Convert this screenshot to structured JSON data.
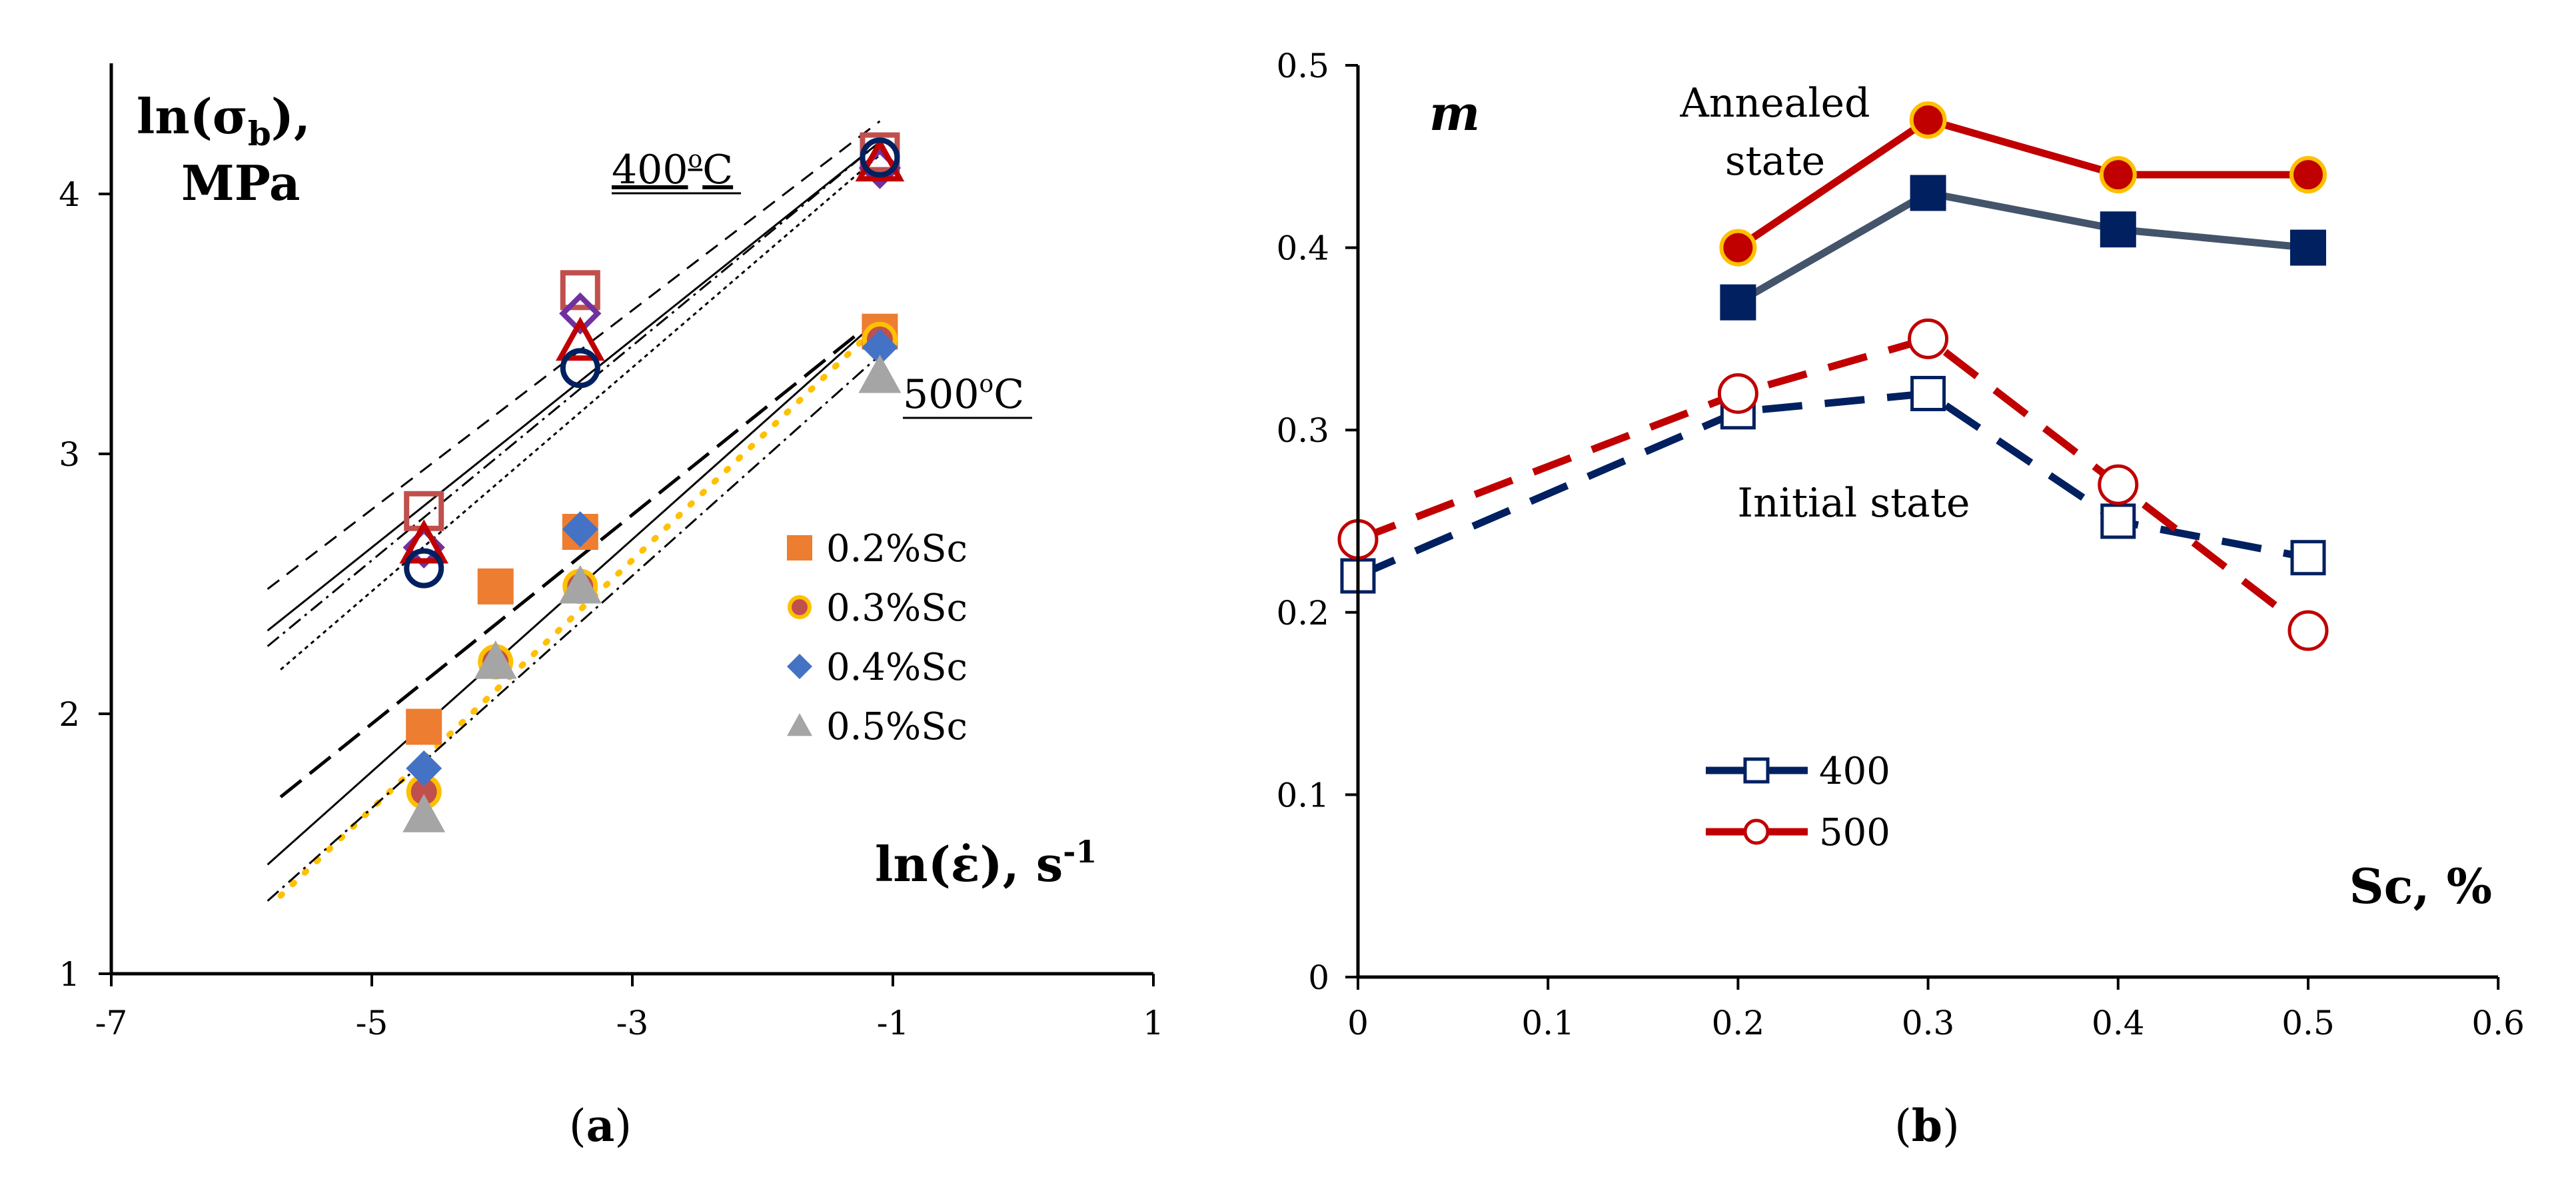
{
  "chart_data": [
    {
      "type": "scatter",
      "caption": "(a)",
      "caption_letter": "a",
      "ylabel_line1": "ln(σ",
      "ylabel_sub": "b",
      "ylabel_line1_end": "),",
      "ylabel_line2": "MPa",
      "xlabel": "ln(ε̇), s",
      "xlabel_sup": "-1",
      "xlim": [
        -7,
        1
      ],
      "ylim": [
        1,
        4.5
      ],
      "xticks": [
        "-7",
        "-5",
        "-3",
        "-1",
        "1"
      ],
      "yticks": [
        "1",
        "2",
        "3",
        "4"
      ],
      "annotations": {
        "t400": "400",
        "t400_sup": "o",
        "t400_end": "C",
        "t500": "500",
        "t500_sup": "o",
        "t500_end": "C"
      },
      "legend_placement": "right-middle",
      "series_400": [
        {
          "marker": "open-square",
          "color": "#C0504D",
          "x": [
            -4.6,
            -3.4,
            -1.1
          ],
          "y": [
            2.78,
            3.63,
            4.16
          ]
        },
        {
          "marker": "open-diamond",
          "color": "#7030A0",
          "x": [
            -4.6,
            -3.4,
            -1.1
          ],
          "y": [
            2.64,
            3.54,
            4.1
          ]
        },
        {
          "marker": "open-triangle",
          "color": "#C00000",
          "x": [
            -4.6,
            -3.4,
            -1.1
          ],
          "y": [
            2.65,
            3.43,
            4.12
          ]
        },
        {
          "marker": "open-circle",
          "color": "#002060",
          "x": [
            -4.6,
            -3.4,
            -1.1
          ],
          "y": [
            2.56,
            3.33,
            4.14
          ]
        }
      ],
      "series_500": [
        {
          "name": "0.2%Sc",
          "marker": "square",
          "color": "#ED7D31",
          "x": [
            -4.6,
            -4.05,
            -3.4,
            -1.1
          ],
          "y": [
            1.95,
            2.49,
            2.7,
            3.47
          ]
        },
        {
          "name": "0.3%Sc",
          "marker": "circle",
          "color": "#C0504D",
          "edge": "#FFC000",
          "x": [
            -4.6,
            -4.05,
            -3.4,
            -1.1
          ],
          "y": [
            1.7,
            2.2,
            2.49,
            3.44
          ]
        },
        {
          "name": "0.4%Sc",
          "marker": "diamond",
          "color": "#4472C4",
          "x": [
            -4.6,
            -3.4,
            -1.1
          ],
          "y": [
            1.79,
            2.71,
            3.41
          ]
        },
        {
          "name": "0.5%Sc",
          "marker": "triangle",
          "color": "#A5A5A5",
          "x": [
            -4.6,
            -4.05,
            -3.4,
            -1.1
          ],
          "y": [
            1.61,
            2.2,
            2.49,
            3.3
          ]
        }
      ],
      "trendlines": [
        {
          "group": "400",
          "style": "dashed",
          "color": "#000000",
          "x": [
            -5.8,
            -1.1
          ],
          "y": [
            2.48,
            4.28
          ]
        },
        {
          "group": "400",
          "style": "solid",
          "color": "#000000",
          "x": [
            -5.8,
            -1.1
          ],
          "y": [
            2.32,
            4.2
          ]
        },
        {
          "group": "400",
          "style": "dashdot",
          "color": "#000000",
          "x": [
            -5.8,
            -1.1
          ],
          "y": [
            2.26,
            4.2
          ]
        },
        {
          "group": "400",
          "style": "dotted",
          "color": "#000000",
          "x": [
            -5.7,
            -1.1
          ],
          "y": [
            2.17,
            4.15
          ]
        },
        {
          "group": "500",
          "style": "longdash",
          "color": "#000000",
          "x": [
            -5.7,
            -1.1
          ],
          "y": [
            1.68,
            3.53
          ]
        },
        {
          "group": "500",
          "style": "solid",
          "color": "#000000",
          "x": [
            -5.8,
            -1.1
          ],
          "y": [
            1.42,
            3.52
          ]
        },
        {
          "group": "500",
          "style": "dotted-yellow",
          "color": "#FFC000",
          "x": [
            -5.7,
            -1.1
          ],
          "y": [
            1.3,
            3.5
          ]
        },
        {
          "group": "500",
          "style": "dashdot",
          "color": "#000000",
          "x": [
            -5.8,
            -1.1
          ],
          "y": [
            1.28,
            3.38
          ]
        }
      ]
    },
    {
      "type": "line",
      "caption": "(b)",
      "caption_letter": "b",
      "ylabel": "m",
      "xlabel": "Sc, %",
      "xlim": [
        0,
        0.6
      ],
      "ylim": [
        0,
        0.5
      ],
      "xticks": [
        "0",
        "0.1",
        "0.2",
        "0.3",
        "0.4",
        "0.5",
        "0.6"
      ],
      "yticks": [
        "0",
        "0.1",
        "0.2",
        "0.3",
        "0.4",
        "0.5"
      ],
      "annotations": {
        "annealed_1": "Annealed",
        "annealed_2": "state",
        "initial": "Initial state"
      },
      "legend_placement": "bottom-center",
      "series": [
        {
          "name": "500 annealed",
          "state": "annealed",
          "style": "solid",
          "marker": "filled-circle",
          "line_color": "#C00000",
          "marker_color": "#C00000",
          "edge": "#FFC000",
          "x": [
            0.2,
            0.3,
            0.4,
            0.5
          ],
          "y": [
            0.4,
            0.47,
            0.44,
            0.44
          ]
        },
        {
          "name": "400 annealed",
          "state": "annealed",
          "style": "solid",
          "marker": "filled-square",
          "line_color": "#44546A",
          "marker_color": "#002060",
          "x": [
            0.2,
            0.3,
            0.4,
            0.5
          ],
          "y": [
            0.37,
            0.43,
            0.41,
            0.4
          ]
        },
        {
          "name": "400",
          "state": "initial",
          "style": "dashed",
          "marker": "open-square",
          "line_color": "#002060",
          "marker_color": "#002060",
          "x": [
            0,
            0.2,
            0.3,
            0.4,
            0.5
          ],
          "y": [
            0.22,
            0.31,
            0.32,
            0.25,
            0.23
          ]
        },
        {
          "name": "500",
          "state": "initial",
          "style": "dashed",
          "marker": "open-circle",
          "line_color": "#C00000",
          "marker_color": "#C00000",
          "x": [
            0,
            0.2,
            0.3,
            0.4,
            0.5
          ],
          "y": [
            0.24,
            0.32,
            0.35,
            0.27,
            0.19
          ]
        }
      ],
      "legend": [
        "400",
        "500"
      ]
    }
  ]
}
